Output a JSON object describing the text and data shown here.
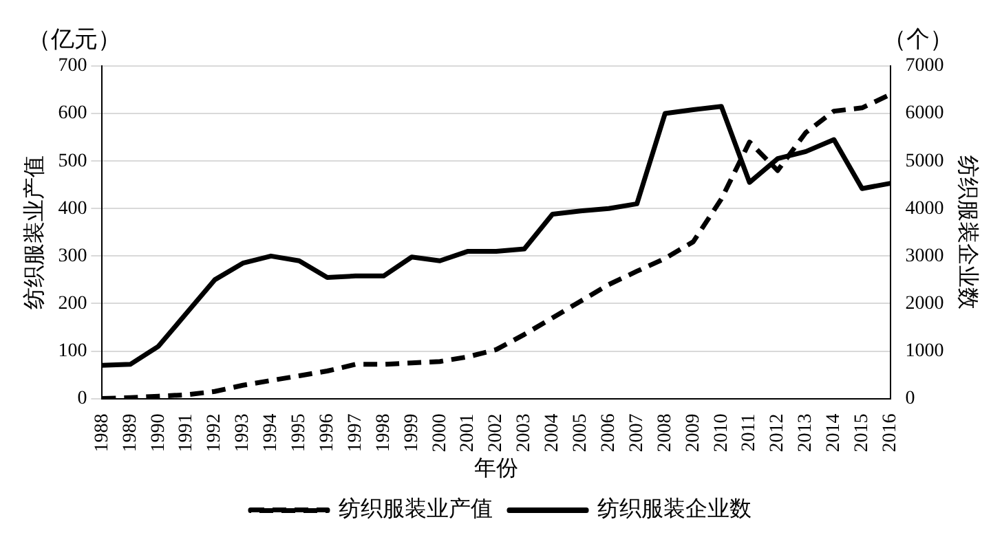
{
  "chart_data": {
    "type": "line",
    "categories": [
      "1988",
      "1989",
      "1990",
      "1991",
      "1992",
      "1993",
      "1994",
      "1995",
      "1996",
      "1997",
      "1998",
      "1999",
      "2000",
      "2001",
      "2002",
      "2003",
      "2004",
      "2005",
      "2006",
      "2007",
      "2008",
      "2009",
      "2010",
      "2011",
      "2012",
      "2013",
      "2014",
      "2015",
      "2016"
    ],
    "xlabel": "年份",
    "ylabel": "纺织服装业产值",
    "y2label": "纺织服装企业数",
    "annotations": [
      "（亿元）",
      "（个）"
    ],
    "ylim": [
      0,
      700
    ],
    "yticks": [
      0,
      100,
      200,
      300,
      400,
      500,
      600,
      700
    ],
    "y2lim": [
      0,
      7000
    ],
    "y2ticks": [
      0,
      1000,
      2000,
      3000,
      4000,
      5000,
      6000,
      7000
    ],
    "grid": "y",
    "legend": "bottom",
    "marker": "none",
    "series": [
      {
        "name": "纺织服装业产值",
        "color": "#000000",
        "line_style": "dashed",
        "values": [
          0,
          2,
          5,
          8,
          15,
          28,
          38,
          48,
          58,
          72,
          72,
          75,
          78,
          88,
          103,
          135,
          170,
          205,
          240,
          268,
          295,
          330,
          420,
          540,
          480,
          560,
          605,
          612,
          640
        ]
      },
      {
        "name": "纺织服装企业数",
        "color": "#000000",
        "line_style": "solid",
        "axis": "y2",
        "values": [
          700,
          720,
          1100,
          1800,
          2500,
          2850,
          3000,
          2900,
          2550,
          2580,
          2580,
          2980,
          2900,
          3100,
          3100,
          3150,
          3880,
          3950,
          4000,
          4100,
          6000,
          6080,
          6150,
          4550,
          5050,
          5200,
          5450,
          4420,
          4530
        ]
      }
    ]
  }
}
